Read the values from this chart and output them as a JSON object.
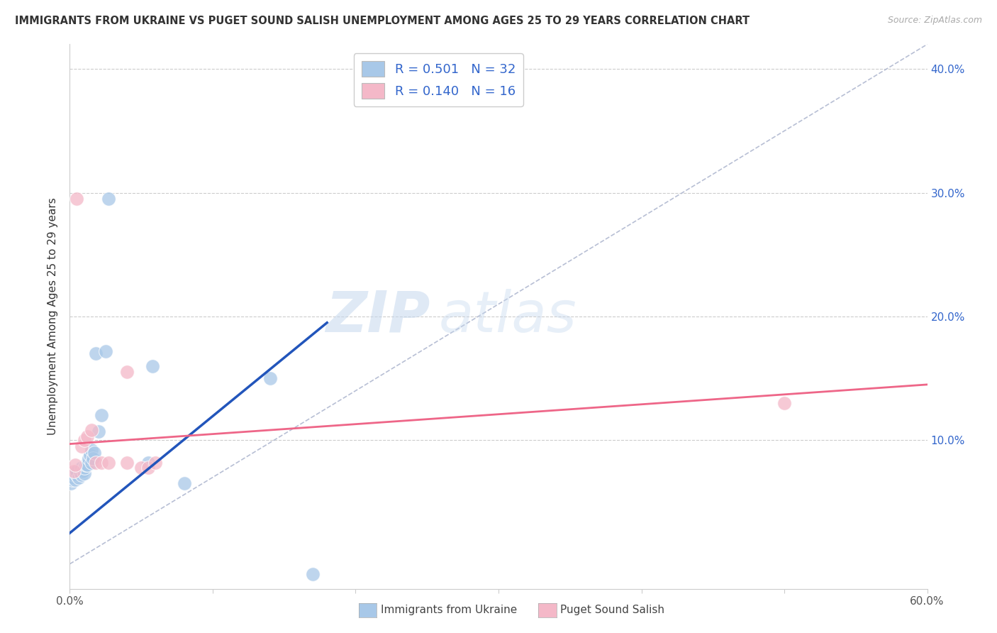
{
  "title": "IMMIGRANTS FROM UKRAINE VS PUGET SOUND SALISH UNEMPLOYMENT AMONG AGES 25 TO 29 YEARS CORRELATION CHART",
  "source": "Source: ZipAtlas.com",
  "ylabel": "Unemployment Among Ages 25 to 29 years",
  "xlim": [
    0.0,
    0.6
  ],
  "ylim": [
    -0.02,
    0.42
  ],
  "yticks_right": [
    0.1,
    0.2,
    0.3,
    0.4
  ],
  "ytick_labels_right": [
    "10.0%",
    "20.0%",
    "30.0%",
    "40.0%"
  ],
  "grid_color": "#cccccc",
  "background_color": "#ffffff",
  "watermark_zip": "ZIP",
  "watermark_atlas": "atlas",
  "legend_R1": "R = 0.501",
  "legend_N1": "N = 32",
  "legend_R2": "R = 0.140",
  "legend_N2": "N = 16",
  "blue_color": "#a8c8e8",
  "pink_color": "#f4b8c8",
  "blue_line_color": "#2255bb",
  "pink_line_color": "#ee6688",
  "ukraine_x": [
    0.001,
    0.002,
    0.003,
    0.003,
    0.004,
    0.005,
    0.005,
    0.006,
    0.007,
    0.008,
    0.008,
    0.009,
    0.01,
    0.01,
    0.011,
    0.012,
    0.013,
    0.014,
    0.015,
    0.015,
    0.016,
    0.017,
    0.018,
    0.02,
    0.022,
    0.025,
    0.027,
    0.055,
    0.058,
    0.08,
    0.14,
    0.17
  ],
  "ukraine_y": [
    0.065,
    0.068,
    0.07,
    0.072,
    0.068,
    0.072,
    0.075,
    0.07,
    0.074,
    0.072,
    0.078,
    0.075,
    0.073,
    0.078,
    0.08,
    0.08,
    0.085,
    0.088,
    0.082,
    0.092,
    0.085,
    0.09,
    0.17,
    0.107,
    0.12,
    0.172,
    0.295,
    0.082,
    0.16,
    0.065,
    0.15,
    -0.008
  ],
  "salish_x": [
    0.003,
    0.004,
    0.005,
    0.008,
    0.01,
    0.012,
    0.015,
    0.018,
    0.022,
    0.027,
    0.04,
    0.04,
    0.05,
    0.055,
    0.06,
    0.5
  ],
  "salish_y": [
    0.075,
    0.08,
    0.295,
    0.095,
    0.1,
    0.103,
    0.108,
    0.082,
    0.082,
    0.082,
    0.082,
    0.155,
    0.078,
    0.078,
    0.082,
    0.13
  ],
  "blue_line_x": [
    0.0,
    0.18
  ],
  "blue_line_y": [
    0.025,
    0.195
  ],
  "pink_line_x": [
    0.0,
    0.6
  ],
  "pink_line_y": [
    0.097,
    0.145
  ]
}
